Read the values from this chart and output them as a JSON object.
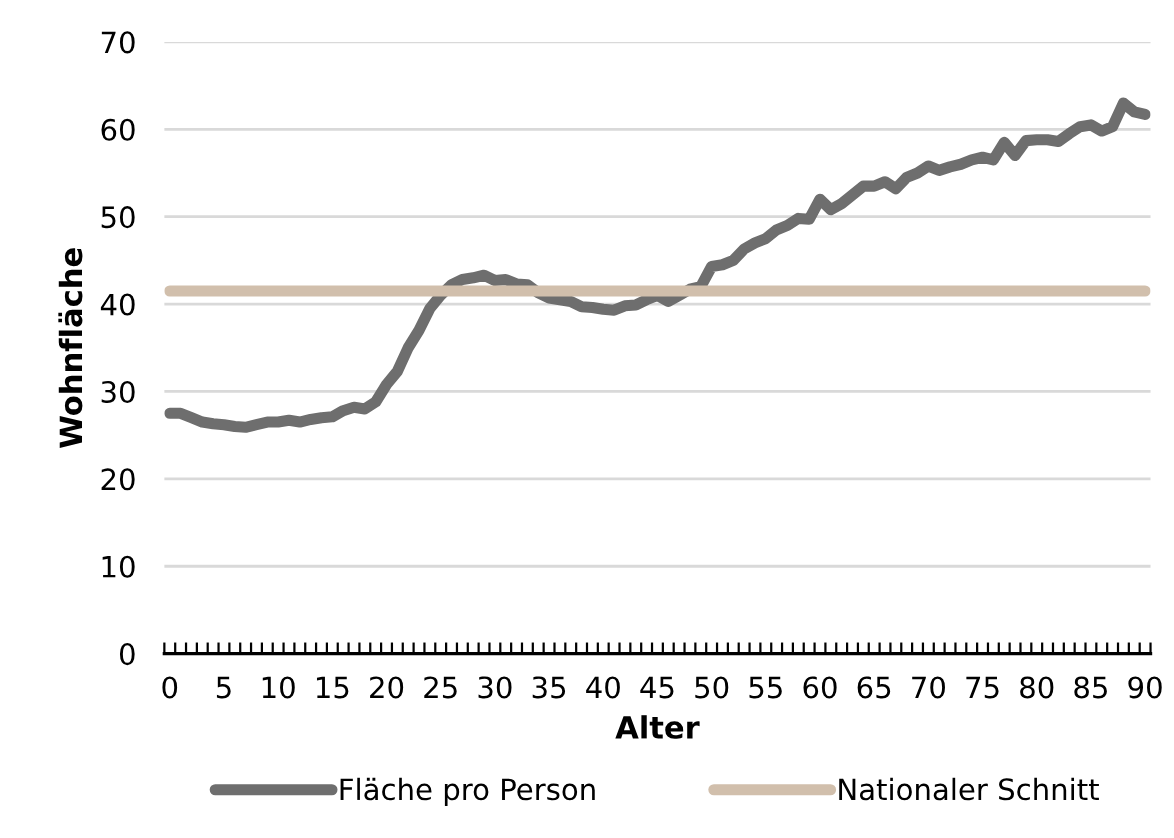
{
  "chart_data": {
    "type": "line",
    "xlabel": "Alter",
    "ylabel": "Wohnfläche",
    "categories": [
      "0",
      null,
      null,
      null,
      null,
      "5",
      null,
      null,
      null,
      null,
      "10",
      null,
      null,
      null,
      null,
      "15",
      null,
      null,
      null,
      null,
      "20",
      null,
      null,
      null,
      null,
      "25",
      null,
      null,
      null,
      null,
      "30",
      null,
      null,
      null,
      null,
      "35",
      null,
      null,
      null,
      null,
      "40",
      null,
      null,
      null,
      null,
      "45",
      null,
      null,
      null,
      null,
      "50",
      null,
      null,
      null,
      null,
      "55",
      null,
      null,
      null,
      null,
      "60",
      null,
      null,
      null,
      null,
      "65",
      null,
      null,
      null,
      null,
      "70",
      null,
      null,
      null,
      null,
      "75",
      null,
      null,
      null,
      null,
      "80",
      null,
      null,
      null,
      null,
      "85",
      null,
      null,
      null,
      null,
      "90"
    ],
    "series": [
      {
        "name": "Fläche pro Person",
        "color": "#6e6e6e",
        "values": [
          27.5,
          27.5,
          27,
          26.5,
          26.3,
          26.2,
          26,
          25.9,
          26.2,
          26.5,
          26.5,
          26.7,
          26.5,
          26.8,
          27,
          27.1,
          27.8,
          28.2,
          28,
          28.8,
          30.8,
          32.3,
          35,
          37,
          39.5,
          41,
          42.2,
          42.8,
          43,
          43.3,
          42.7,
          42.8,
          42.3,
          42.2,
          41.3,
          40.7,
          40.5,
          40.3,
          39.7,
          39.6,
          39.4,
          39.3,
          39.8,
          39.9,
          40.5,
          41,
          40.3,
          41,
          41.7,
          42,
          44.3,
          44.5,
          45,
          46.3,
          47,
          47.5,
          48.5,
          49,
          49.8,
          49.7,
          52,
          50.8,
          51.5,
          52.5,
          53.5,
          53.5,
          54,
          53.2,
          54.5,
          55,
          55.8,
          55.3,
          55.7,
          56,
          56.5,
          56.8,
          56.5,
          58.5,
          57,
          58.7,
          58.8,
          58.8,
          58.6,
          59.5,
          60.3,
          60.5,
          59.8,
          60.3,
          63,
          62,
          61.7
        ]
      },
      {
        "name": "Nationaler Schnitt",
        "color": "#d1bfac",
        "values": [
          41.5,
          41.5,
          41.5,
          41.5,
          41.5,
          41.5,
          41.5,
          41.5,
          41.5,
          41.5,
          41.5,
          41.5,
          41.5,
          41.5,
          41.5,
          41.5,
          41.5,
          41.5,
          41.5,
          41.5,
          41.5,
          41.5,
          41.5,
          41.5,
          41.5,
          41.5,
          41.5,
          41.5,
          41.5,
          41.5,
          41.5,
          41.5,
          41.5,
          41.5,
          41.5,
          41.5,
          41.5,
          41.5,
          41.5,
          41.5,
          41.5,
          41.5,
          41.5,
          41.5,
          41.5,
          41.5,
          41.5,
          41.5,
          41.5,
          41.5,
          41.5,
          41.5,
          41.5,
          41.5,
          41.5,
          41.5,
          41.5,
          41.5,
          41.5,
          41.5,
          41.5,
          41.5,
          41.5,
          41.5,
          41.5,
          41.5,
          41.5,
          41.5,
          41.5,
          41.5,
          41.5,
          41.5,
          41.5,
          41.5,
          41.5,
          41.5,
          41.5,
          41.5,
          41.5,
          41.5,
          41.5,
          41.5,
          41.5,
          41.5,
          41.5,
          41.5,
          41.5,
          41.5,
          41.5,
          41.5,
          41.5
        ]
      }
    ],
    "ylim": [
      0,
      70
    ],
    "yticks": [
      0,
      10,
      20,
      30,
      40,
      50,
      60,
      70
    ],
    "grid": "y",
    "legend": "bottom",
    "marker": "none",
    "line_style": "solid"
  }
}
